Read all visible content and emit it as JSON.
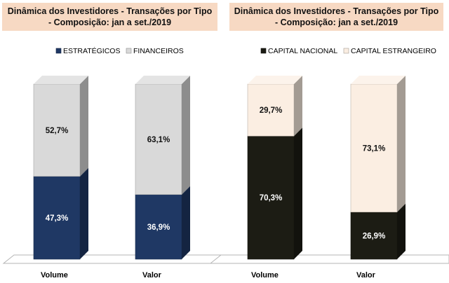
{
  "chart_data": [
    {
      "type": "bar",
      "stacked": true,
      "title": [
        "Dinâmica dos Investidores - Transações por Tipo",
        "- Composição: jan a set./2019"
      ],
      "categories": [
        "Volume",
        "Valor"
      ],
      "legend_position": "top",
      "unit": "%",
      "ylim": [
        0,
        100
      ],
      "series": [
        {
          "name": "ESTRATÉGICOS",
          "values": [
            47.3,
            36.9
          ],
          "labels": [
            "47,3%",
            "36,9%"
          ],
          "color": "#1f3864"
        },
        {
          "name": "FINANCEIROS",
          "values": [
            52.7,
            63.1
          ],
          "labels": [
            "52,7%",
            "63,1%"
          ],
          "color": "#d9d9d9"
        }
      ]
    },
    {
      "type": "bar",
      "stacked": true,
      "title": [
        "Dinâmica dos Investidores - Transações por Tipo",
        "- Composição: jan a set./2019"
      ],
      "categories": [
        "Volume",
        "Valor"
      ],
      "legend_position": "top",
      "unit": "%",
      "ylim": [
        0,
        100
      ],
      "series": [
        {
          "name": "CAPITAL NACIONAL",
          "values": [
            70.3,
            26.9
          ],
          "labels": [
            "70,3%",
            "26,9%"
          ],
          "color": "#1c1c14"
        },
        {
          "name": "CAPITAL ESTRANGEIRO",
          "values": [
            29.7,
            73.1
          ],
          "labels": [
            "29,7%",
            "73,1%"
          ],
          "color": "#fbeee2"
        }
      ]
    }
  ]
}
